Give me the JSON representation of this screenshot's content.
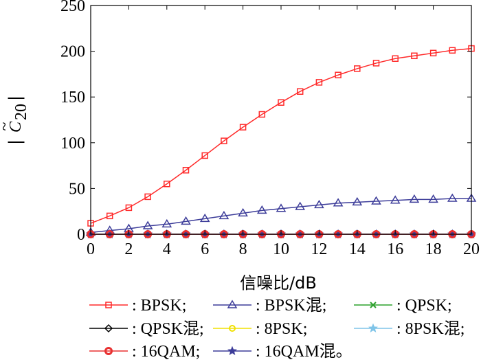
{
  "chart_data": {
    "type": "line",
    "xlabel": "信噪比/dB",
    "ylabel": "|C̃20|",
    "ylabel_parts": {
      "open": "|",
      "symbol": "C",
      "tilde": "~",
      "subscript": "20",
      "close": "|"
    },
    "xlim": [
      0,
      20
    ],
    "ylim": [
      0,
      250
    ],
    "xticks": [
      0,
      2,
      4,
      6,
      8,
      10,
      12,
      14,
      16,
      18,
      20
    ],
    "yticks": [
      0,
      50,
      100,
      150,
      200,
      250
    ],
    "grid": false,
    "legend_position": "bottom",
    "x": [
      0,
      1,
      2,
      3,
      4,
      5,
      6,
      7,
      8,
      9,
      10,
      11,
      12,
      13,
      14,
      15,
      16,
      17,
      18,
      19,
      20
    ],
    "series": [
      {
        "name": ": BPSK;",
        "color": "#ff2a2a",
        "marker": "square",
        "values": [
          12,
          20,
          29,
          41,
          55,
          70,
          86,
          102,
          117,
          131,
          144,
          156,
          166,
          174,
          181,
          187,
          192,
          195,
          198,
          201,
          203
        ]
      },
      {
        "name": ": BPSK混;",
        "color": "#3c3c99",
        "marker": "triangle",
        "values": [
          2,
          4,
          6,
          9,
          11,
          14,
          17,
          20,
          23,
          26,
          28,
          30,
          32,
          34,
          35,
          36,
          37,
          38,
          38,
          39,
          39
        ]
      },
      {
        "name": ": QPSK;",
        "color": "#2ca02c",
        "marker": "x",
        "values": [
          0,
          0,
          0,
          0,
          0,
          0,
          0,
          0,
          0,
          0,
          0,
          0,
          0,
          0,
          0,
          0,
          0,
          0,
          0,
          0,
          0
        ]
      },
      {
        "name": ": QPSK混;",
        "color": "#000000",
        "marker": "diamond",
        "values": [
          0,
          0,
          0,
          0,
          0,
          0,
          0,
          0,
          0,
          0,
          0,
          0,
          0,
          0,
          0,
          0,
          0,
          0,
          0,
          0,
          0
        ]
      },
      {
        "name": ": 8PSK;",
        "color": "#f0e000",
        "marker": "circle",
        "values": [
          0,
          0,
          0,
          0,
          0,
          0,
          0,
          0,
          0,
          0,
          0,
          0,
          0,
          0,
          0,
          0,
          0,
          0,
          0,
          0,
          0
        ]
      },
      {
        "name": ": 8PSK混;",
        "color": "#7fc4e8",
        "marker": "star",
        "values": [
          0,
          0,
          0,
          0,
          0,
          0,
          0,
          0,
          0,
          0,
          0,
          0,
          0,
          0,
          0,
          0,
          0,
          0,
          0,
          0,
          0
        ]
      },
      {
        "name": ": 16QAM;",
        "color": "#e83030",
        "marker": "circle-thick",
        "values": [
          0,
          0,
          0,
          0,
          0,
          0,
          0,
          0,
          0,
          0,
          0,
          0,
          0,
          0,
          0,
          0,
          0,
          0,
          0,
          0,
          0
        ]
      },
      {
        "name": ": 16QAM混。",
        "color": "#3c3c99",
        "marker": "star",
        "values": [
          0,
          0,
          0,
          0,
          0,
          0,
          0,
          0,
          0,
          0,
          0,
          0,
          0,
          0,
          0,
          0,
          0,
          0,
          0,
          0,
          0
        ]
      }
    ]
  }
}
